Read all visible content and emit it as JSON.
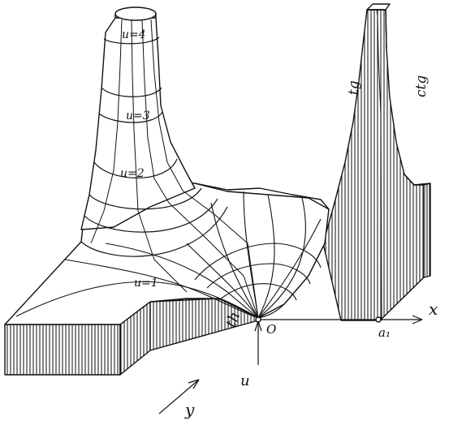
{
  "figure": {
    "level_labels": [
      "u=4",
      "u=3",
      "u=2",
      "u=1"
    ],
    "function_labels": {
      "tg": "tg",
      "ctg": "ctg",
      "th": "th"
    },
    "axis_labels": {
      "x": "x",
      "y": "y",
      "u": "u"
    },
    "point_labels": {
      "origin": "O",
      "a1": "a₁"
    },
    "colors": {
      "ink": "#111111",
      "paper": "#ffffff"
    }
  }
}
